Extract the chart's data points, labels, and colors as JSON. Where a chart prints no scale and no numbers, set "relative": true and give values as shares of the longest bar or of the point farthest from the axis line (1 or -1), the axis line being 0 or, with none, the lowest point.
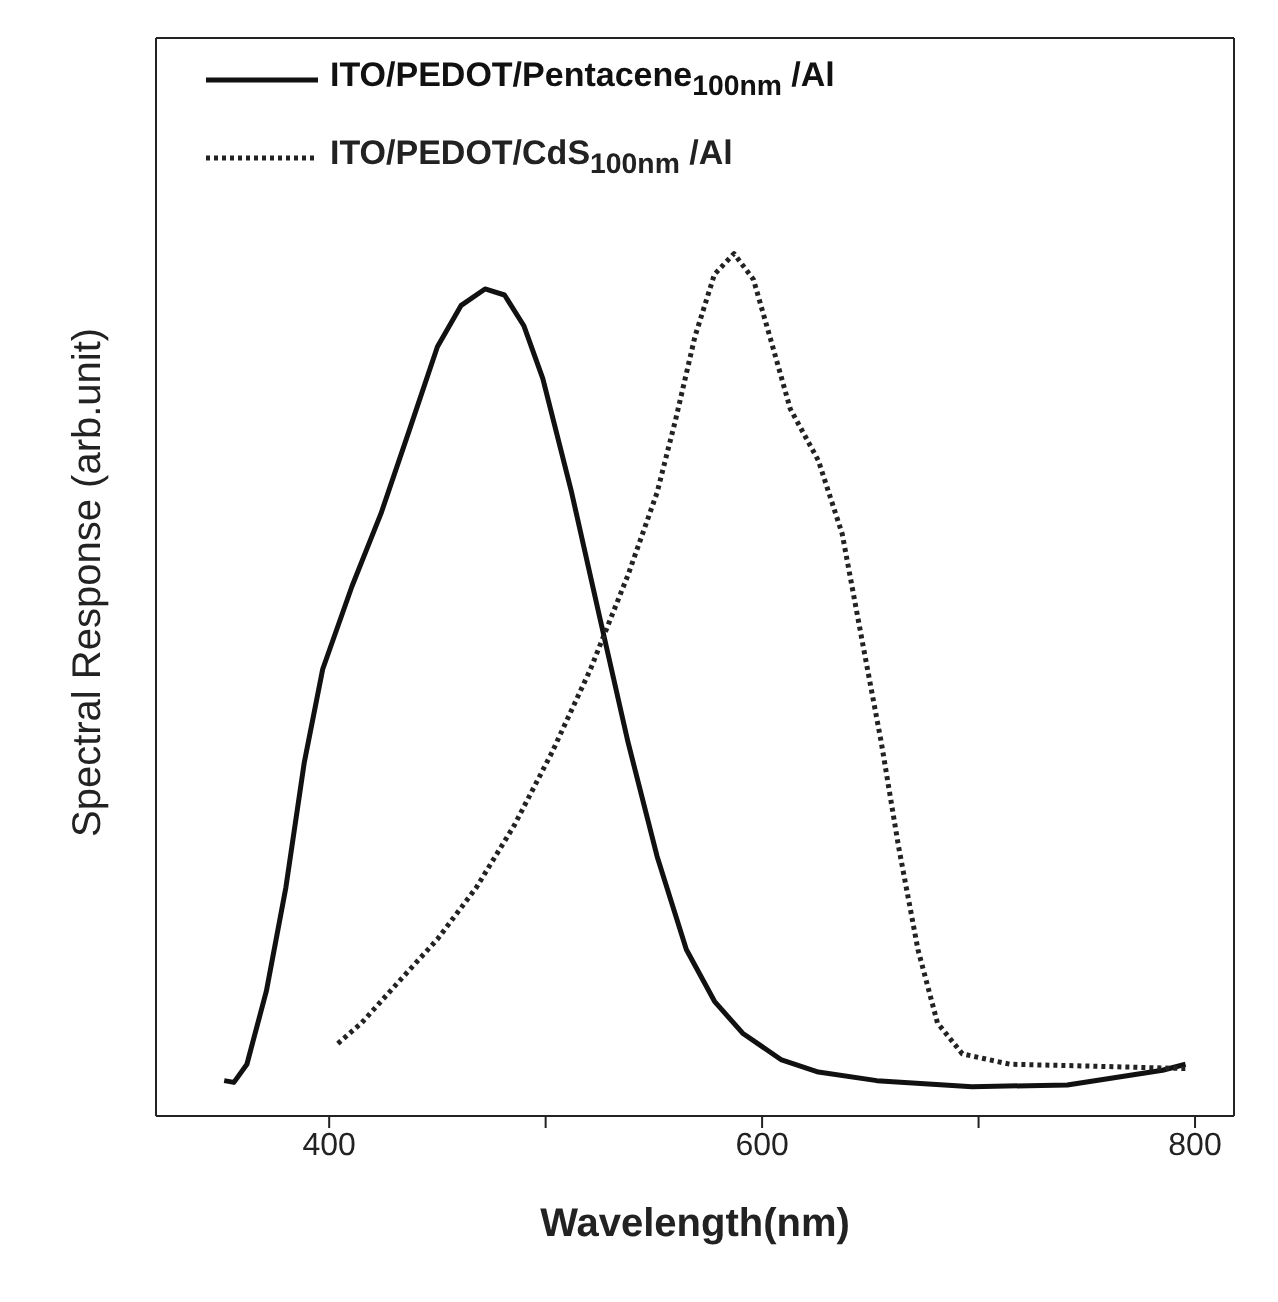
{
  "chart_data": {
    "type": "line",
    "relative": true,
    "xlabel": "Wavelength(nm)",
    "ylabel": "Spectral Response (arb.unit)",
    "xlim": [
      320,
      818
    ],
    "xticks": [
      400,
      {
        "value": 500,
        "label": null
      },
      600,
      {
        "value": 700,
        "label": null
      },
      800
    ],
    "legend": "top",
    "marker": "none",
    "grid": false,
    "series": [
      {
        "name": "ITO/PEDOT/Pentacene$_{100nm}$ /Al",
        "color": "#111111",
        "line_style": "solid",
        "x": [
          351.5,
          356,
          362,
          371,
          380,
          388.5,
          397,
          410.5,
          424,
          437,
          450,
          461,
          472,
          481,
          490,
          498.7,
          512,
          525,
          538,
          551.5,
          565,
          578,
          591,
          609,
          626,
          653,
          697,
          741,
          785,
          795.6
        ],
        "values": [
          0.041,
          0.039,
          0.06,
          0.145,
          0.265,
          0.41,
          0.518,
          0.614,
          0.699,
          0.795,
          0.892,
          0.94,
          0.959,
          0.952,
          0.916,
          0.855,
          0.723,
          0.578,
          0.434,
          0.301,
          0.193,
          0.133,
          0.096,
          0.065,
          0.051,
          0.041,
          0.034,
          0.036,
          0.053,
          0.06
        ]
      },
      {
        "name": "ITO/PEDOT/CdS$_{100nm}$ /Al",
        "color": "#222222",
        "line_style": "dotted",
        "x": [
          404,
          415,
          432.6,
          450,
          468,
          485.5,
          503,
          520.7,
          538,
          551.5,
          560,
          569,
          578,
          587,
          596,
          604,
          613,
          626,
          637,
          646,
          655,
          663,
          672,
          681,
          692.5,
          714.5,
          749.6,
          795.6
        ],
        "values": [
          0.084,
          0.108,
          0.157,
          0.205,
          0.265,
          0.337,
          0.422,
          0.518,
          0.627,
          0.723,
          0.807,
          0.904,
          0.976,
          1,
          0.97,
          0.9,
          0.82,
          0.76,
          0.675,
          0.554,
          0.434,
          0.313,
          0.193,
          0.108,
          0.072,
          0.06,
          0.058,
          0.055
        ]
      }
    ]
  }
}
